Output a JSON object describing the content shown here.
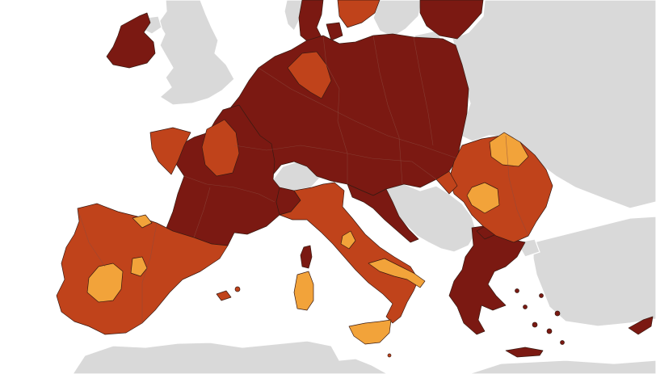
{
  "map": {
    "colors": {
      "sea": "#ffffff",
      "non_member": "#d9d9d9",
      "dark_red": "#7b1912",
      "red_orange": "#c0431b",
      "orange": "#f2a33a",
      "border": "#3a1a12"
    },
    "legend_categories": [
      "dark_red",
      "red_orange",
      "orange",
      "non_member"
    ]
  }
}
